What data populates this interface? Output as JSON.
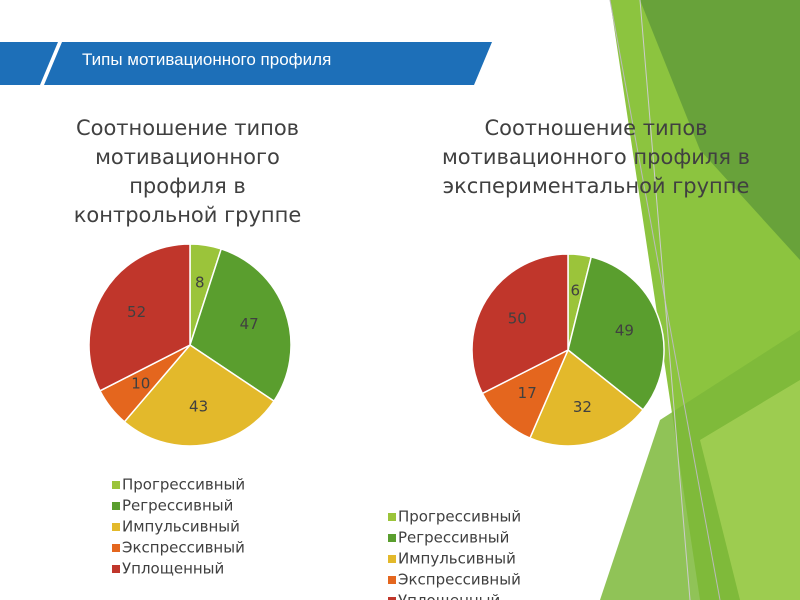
{
  "slide_title": "Типы мотивационного профиля",
  "chart_data": [
    {
      "type": "pie",
      "title": "Соотношение типов мотивационного профиля в контрольной группе",
      "categories": [
        "Прогрессивный",
        "Регрессивный",
        "Импульсивный",
        "Экспрессивный",
        "Уплощенный"
      ],
      "values": [
        8,
        47,
        43,
        10,
        52
      ],
      "colors": [
        "#9bc43a",
        "#5a9e2e",
        "#e3b92b",
        "#e4661e",
        "#c0362b"
      ]
    },
    {
      "type": "pie",
      "title": "Соотношение типов мотивационного профиля в экспериментальной группе",
      "categories": [
        "Прогрессивный",
        "Регрессивный",
        "Импульсивный",
        "Экспрессивный",
        "Уплощенный"
      ],
      "values": [
        6,
        49,
        32,
        17,
        50
      ],
      "colors": [
        "#9bc43a",
        "#5a9e2e",
        "#e3b92b",
        "#e4661e",
        "#c0362b"
      ]
    }
  ]
}
